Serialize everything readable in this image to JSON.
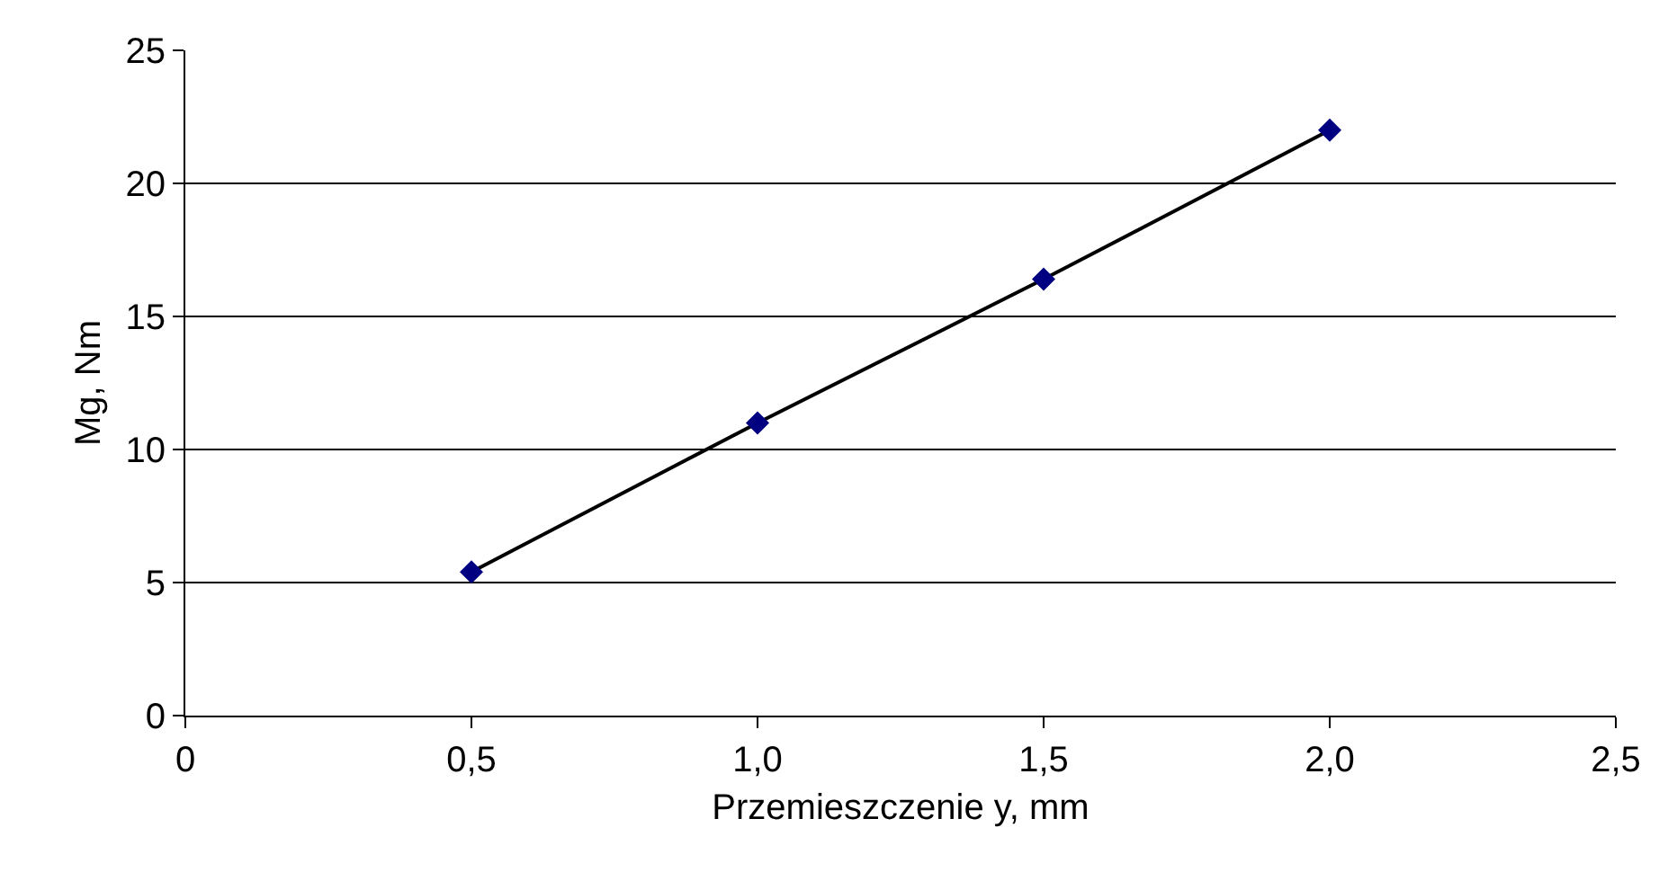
{
  "chart_data": {
    "type": "scatter",
    "xlabel": "Przemieszczenie y, mm",
    "ylabel": "Mg, Nm",
    "x": [
      0.5,
      1.0,
      1.5,
      2.0
    ],
    "series": [
      {
        "type": "scatter",
        "color": "#000080",
        "marker": "diamond",
        "values": [
          5.4,
          11.0,
          16.4,
          22.0
        ]
      },
      {
        "type": "line",
        "color": "#000000",
        "marker": "none",
        "line_style": "solid",
        "values": [
          5.4,
          11.0,
          16.4,
          22.0
        ]
      }
    ],
    "xlim": [
      0,
      2.5
    ],
    "xticks": [
      0,
      {
        "value": 0.5,
        "label": "0,5"
      },
      {
        "value": 1.0,
        "label": "1,0"
      },
      {
        "value": 1.5,
        "label": "1,5"
      },
      {
        "value": 2.0,
        "label": "2,0"
      },
      {
        "value": 2.5,
        "label": "2,5"
      }
    ],
    "ylim": [
      0,
      25
    ],
    "yticks": [
      0,
      5,
      10,
      15,
      20,
      25
    ],
    "grid": "y",
    "legend": false
  }
}
